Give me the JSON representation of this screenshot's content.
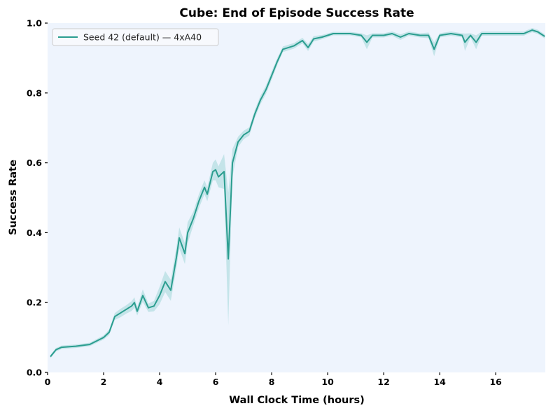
{
  "chart_data": {
    "type": "line",
    "title": "Cube: End of Episode Success Rate",
    "xlabel": "Wall Clock Time (hours)",
    "ylabel": "Success Rate",
    "xlim": [
      0,
      17.77
    ],
    "ylim": [
      0.0,
      1.0
    ],
    "xticks": [
      0,
      2,
      4,
      6,
      8,
      10,
      12,
      14,
      16
    ],
    "yticks": [
      0.0,
      0.2,
      0.4,
      0.6,
      0.8,
      1.0
    ],
    "xtick_labels": [
      "0",
      "2",
      "4",
      "6",
      "8",
      "10",
      "12",
      "14",
      "16"
    ],
    "ytick_labels": [
      "0.0",
      "0.2",
      "0.4",
      "0.6",
      "0.8",
      "1.0"
    ],
    "grid": false,
    "legend_position": "upper left",
    "background_color": "#eef4fd",
    "series": [
      {
        "name": "Seed 42 (default) — 4xA40",
        "color": "#2a9d8f",
        "band_color": "#a8d8dc",
        "x": [
          0.1,
          0.3,
          0.5,
          1.0,
          1.5,
          2.0,
          2.2,
          2.4,
          2.6,
          2.8,
          3.0,
          3.1,
          3.2,
          3.4,
          3.6,
          3.8,
          4.0,
          4.2,
          4.4,
          4.6,
          4.7,
          4.9,
          5.0,
          5.2,
          5.4,
          5.6,
          5.7,
          5.9,
          6.0,
          6.1,
          6.3,
          6.45,
          6.6,
          6.8,
          7.0,
          7.2,
          7.4,
          7.6,
          7.8,
          8.0,
          8.2,
          8.4,
          8.6,
          8.8,
          9.0,
          9.1,
          9.3,
          9.5,
          9.8,
          10.2,
          10.8,
          11.2,
          11.4,
          11.6,
          12.0,
          12.3,
          12.6,
          12.9,
          13.3,
          13.6,
          13.8,
          14.0,
          14.4,
          14.8,
          14.9,
          15.1,
          15.3,
          15.5,
          16.0,
          16.5,
          17.0,
          17.3,
          17.5,
          17.75
        ],
        "values": [
          0.045,
          0.065,
          0.072,
          0.075,
          0.08,
          0.1,
          0.115,
          0.16,
          0.17,
          0.18,
          0.19,
          0.2,
          0.175,
          0.22,
          0.185,
          0.19,
          0.22,
          0.26,
          0.235,
          0.33,
          0.385,
          0.34,
          0.4,
          0.44,
          0.49,
          0.53,
          0.51,
          0.575,
          0.58,
          0.56,
          0.575,
          0.325,
          0.6,
          0.66,
          0.68,
          0.69,
          0.74,
          0.78,
          0.81,
          0.85,
          0.89,
          0.925,
          0.93,
          0.935,
          0.945,
          0.95,
          0.93,
          0.955,
          0.96,
          0.97,
          0.97,
          0.965,
          0.945,
          0.965,
          0.965,
          0.97,
          0.96,
          0.97,
          0.965,
          0.965,
          0.925,
          0.965,
          0.97,
          0.965,
          0.945,
          0.965,
          0.945,
          0.97,
          0.97,
          0.97,
          0.97,
          0.98,
          0.975,
          0.962
        ],
        "band_halfwidth": [
          0.005,
          0.005,
          0.005,
          0.005,
          0.005,
          0.006,
          0.008,
          0.01,
          0.012,
          0.012,
          0.014,
          0.015,
          0.012,
          0.018,
          0.012,
          0.015,
          0.025,
          0.03,
          0.03,
          0.03,
          0.03,
          0.03,
          0.03,
          0.02,
          0.02,
          0.02,
          0.02,
          0.025,
          0.03,
          0.03,
          0.05,
          0.19,
          0.04,
          0.015,
          0.012,
          0.012,
          0.012,
          0.012,
          0.012,
          0.012,
          0.01,
          0.008,
          0.008,
          0.008,
          0.008,
          0.008,
          0.01,
          0.008,
          0.006,
          0.005,
          0.005,
          0.006,
          0.02,
          0.006,
          0.006,
          0.006,
          0.008,
          0.006,
          0.006,
          0.008,
          0.02,
          0.006,
          0.006,
          0.006,
          0.025,
          0.006,
          0.02,
          0.006,
          0.006,
          0.006,
          0.006,
          0.006,
          0.006,
          0.006
        ]
      }
    ]
  }
}
